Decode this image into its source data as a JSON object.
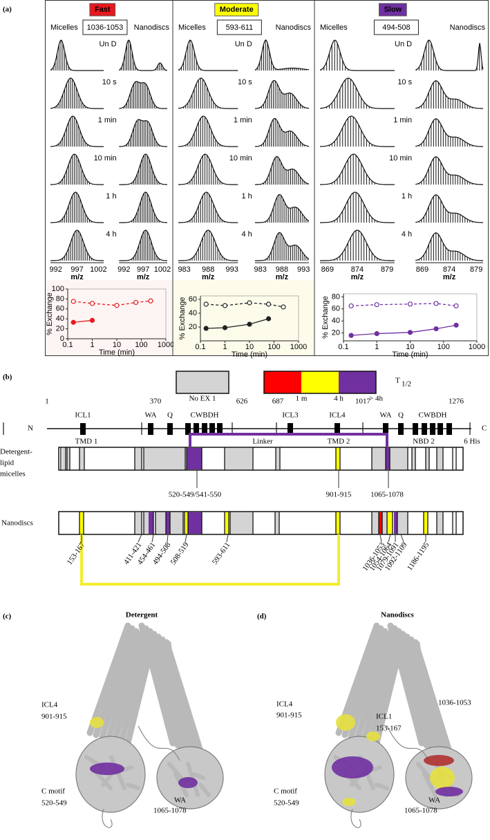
{
  "panel_a": {
    "label": "(a)",
    "columns": [
      {
        "rate": "Fast",
        "rate_color": "#e8181e",
        "peptide": "1036-1053",
        "left": "Micelles",
        "right": "Nanodiscs",
        "times": [
          "Un D",
          "10 s",
          "1 min",
          "10 min",
          "1 h",
          "4 h"
        ],
        "mz_ticks": [
          992,
          997,
          1002
        ],
        "mz_label": "m/z"
      },
      {
        "rate": "Moderate",
        "rate_color": "#ffff00",
        "peptide": "593-611",
        "left": "Micelles",
        "right": "Nanodiscs",
        "times": [
          "Un D",
          "10 s",
          "1 min",
          "10 min",
          "1 h",
          "4 h"
        ],
        "mz_ticks": [
          983,
          988,
          993
        ],
        "mz_label": "m/z"
      },
      {
        "rate": "Slow",
        "rate_color": "#7030a0",
        "peptide": "494-508",
        "left": "Micelles",
        "right": "Nanodiscs",
        "times": [
          "Un D",
          "10 s",
          "1 min",
          "10 min",
          "1 h",
          "4 h"
        ],
        "mz_ticks": [
          869,
          874,
          879
        ],
        "mz_label": "m/z"
      }
    ]
  },
  "chart_data": [
    {
      "type": "line",
      "xlabel": "Time (min)",
      "ylabel": "% Exchange",
      "xscale": "log",
      "x": [
        0.17,
        1,
        10,
        60,
        240
      ],
      "xlim": [
        0.1,
        1000
      ],
      "xticks": [
        0.1,
        1,
        10,
        100,
        1000
      ],
      "ylim": [
        0,
        100
      ],
      "yticks": [
        0,
        20,
        40,
        60,
        80,
        100
      ],
      "series": [
        {
          "color": "#e8181e",
          "dashed": true,
          "filled": false,
          "values": [
            75,
            71,
            67,
            73,
            76
          ]
        },
        {
          "color": "#e8181e",
          "dashed": false,
          "filled": true,
          "values": [
            33,
            37,
            null,
            null,
            null
          ]
        }
      ]
    },
    {
      "type": "line",
      "xlabel": "Time (min)",
      "ylabel": "% Exchange",
      "xscale": "log",
      "x": [
        0.17,
        1,
        10,
        60,
        240
      ],
      "xlim": [
        0.1,
        1000
      ],
      "xticks": [
        0.1,
        1,
        10,
        100,
        1000
      ],
      "ylim": [
        0,
        65
      ],
      "yticks": [
        20,
        40,
        60
      ],
      "series": [
        {
          "color": "#222222",
          "dashed": true,
          "filled": false,
          "values": [
            53,
            51,
            55,
            53,
            49
          ]
        },
        {
          "color": "#222222",
          "dashed": false,
          "filled": true,
          "values": [
            18,
            19,
            24,
            32,
            null
          ]
        }
      ]
    },
    {
      "type": "line",
      "xlabel": "Time (min)",
      "ylabel": "% Exchange",
      "xscale": "log",
      "x": [
        0.17,
        1,
        10,
        60,
        240
      ],
      "xlim": [
        0.1,
        1000
      ],
      "xticks": [
        0.1,
        1,
        10,
        100,
        1000
      ],
      "ylim": [
        7,
        85
      ],
      "yticks": [
        20,
        40,
        60,
        80
      ],
      "series": [
        {
          "color": "#7030a0",
          "dashed": true,
          "filled": false,
          "values": [
            65,
            67,
            68,
            69,
            65
          ]
        },
        {
          "color": "#7030a0",
          "dashed": false,
          "filled": true,
          "values": [
            16,
            19,
            21,
            27,
            33
          ]
        }
      ]
    }
  ],
  "panel_b": {
    "label": "(b)",
    "legend": {
      "no_exchange": "No EX 1",
      "colors": [
        "#ff0000",
        "#ffff00",
        "#7030a0"
      ],
      "marks": [
        "1 m",
        "4 h",
        "> 4h"
      ],
      "t_half": "T",
      "t_half_sub": "1/2"
    },
    "track": {
      "ends": [
        "N",
        "C"
      ],
      "positions": [
        "1",
        "370",
        "626",
        "687",
        "1017",
        "1276"
      ],
      "motifs": [
        "ICL1",
        "WA",
        "Q",
        "CWBDH",
        "ICL3",
        "ICL4",
        "WA",
        "Q",
        "CWBDH"
      ],
      "domains": [
        "TMD 1",
        "Linker",
        "TMD 2",
        "NBD 2",
        "6 His"
      ]
    },
    "detergent_row": [
      "Detergent-",
      "lipid",
      "micelles"
    ],
    "nanodisc_row": "Nanodiscs",
    "detergent_labels": [
      "520-549/541-550",
      "901-915",
      "1065-1078"
    ],
    "nanodisc_labels": [
      "153-167",
      "411-421",
      "454-461",
      "494-508",
      "508-519",
      "593-611",
      "1036-1053",
      "1054-1064",
      "1079-1091",
      "1092-1109",
      "1186-1195"
    ]
  },
  "panel_c": {
    "label": "(c)",
    "title": "Detergent",
    "annotations": [
      "ICL4",
      "901-915",
      "C motif",
      "520-549",
      "WA",
      "1065-1078"
    ]
  },
  "panel_d": {
    "label": "(d)",
    "title": "Nanodiscs",
    "annotations": [
      "ICL4",
      "901-915",
      "ICL1",
      "153-167",
      "1036-1053",
      "WA",
      "1065-1078",
      "C motif",
      "520-549"
    ]
  }
}
